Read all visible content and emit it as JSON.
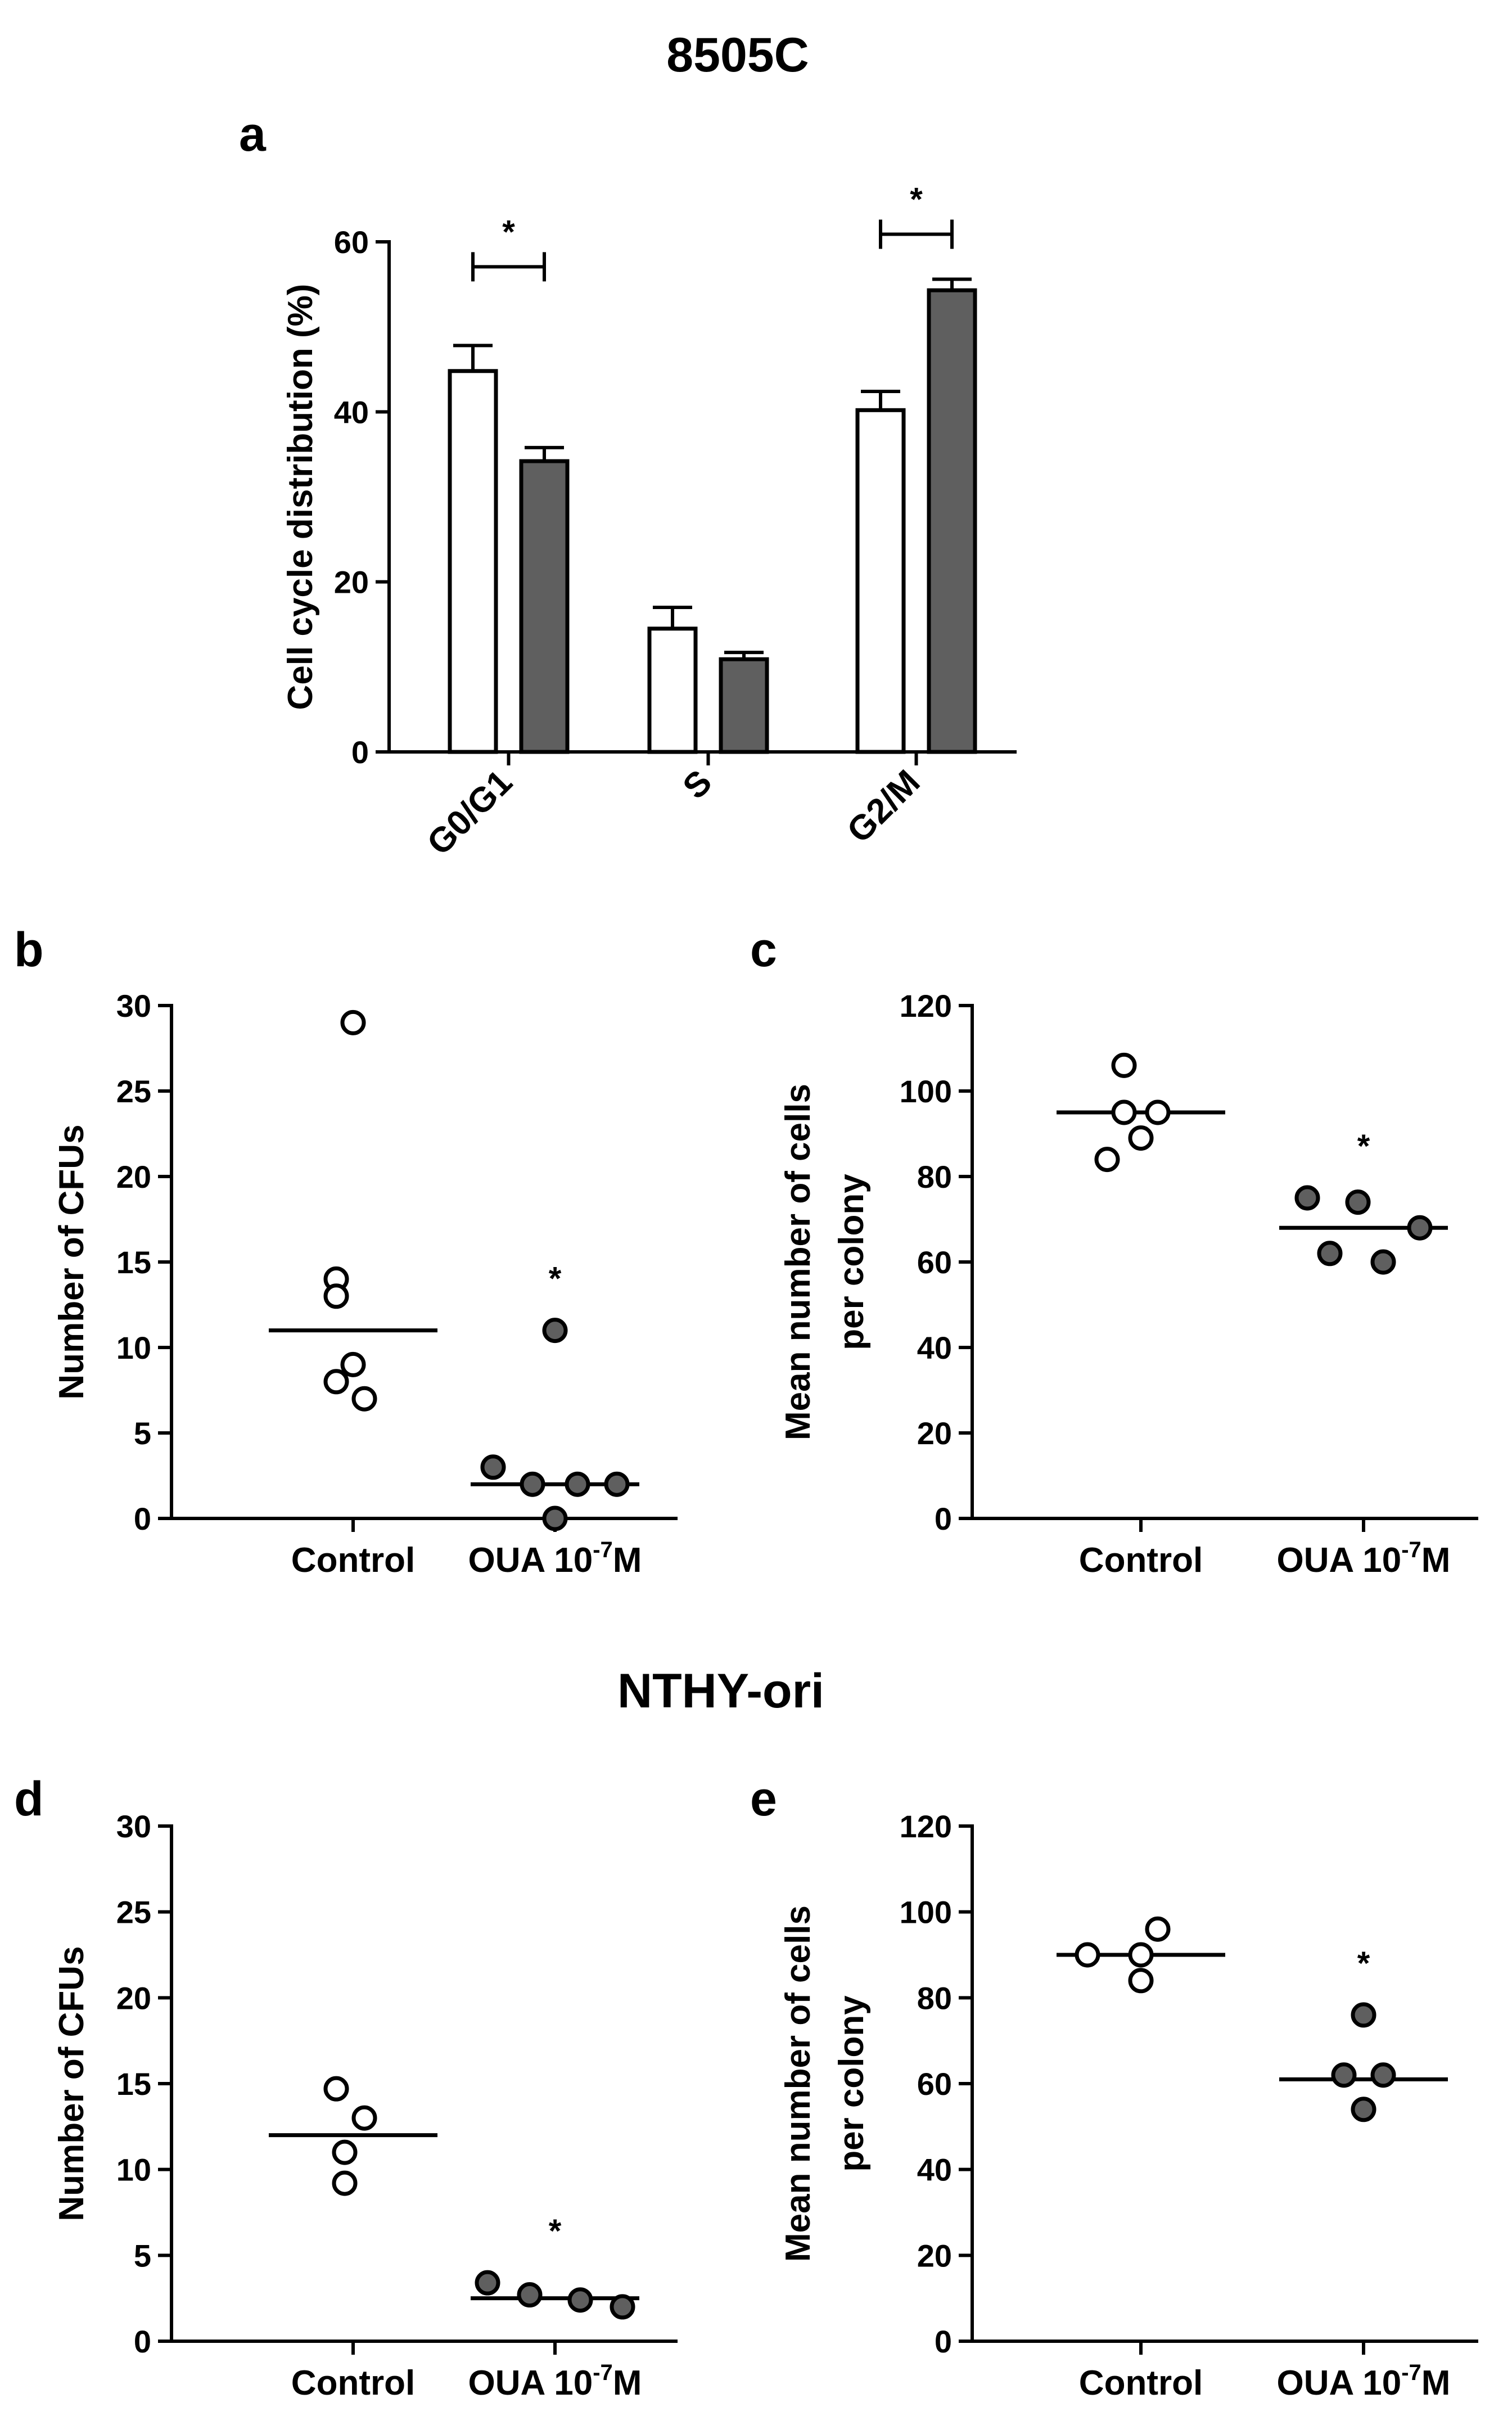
{
  "titles": {
    "top": "8505C",
    "middle": "NTHY-ori"
  },
  "colors": {
    "control": "#ffffff",
    "oua": "#5f5f5f",
    "ink": "#000000"
  },
  "chart_data": [
    {
      "panel": "a",
      "type": "bar",
      "ylabel": "Cell cycle distribution (%)",
      "ylim": [
        0,
        60
      ],
      "yticks": [
        0,
        20,
        40,
        60
      ],
      "categories": [
        "G0/G1",
        "S",
        "G2/M"
      ],
      "series": [
        {
          "name": "Control",
          "values": [
            44.8,
            14.5,
            40.2
          ],
          "errors": [
            3.0,
            2.5,
            2.2
          ]
        },
        {
          "name": "OUA",
          "values": [
            34.2,
            10.9,
            54.3
          ],
          "errors": [
            1.6,
            0.8,
            1.3
          ]
        }
      ],
      "significance": [
        {
          "category": "G0/G1",
          "label": "*"
        },
        {
          "category": "G2/M",
          "label": "*"
        }
      ]
    },
    {
      "panel": "b",
      "type": "scatter",
      "ylabel": "Number of CFUs",
      "ylim": [
        0,
        30
      ],
      "yticks": [
        0,
        5,
        10,
        15,
        20,
        25,
        30
      ],
      "groups": [
        {
          "name": "Control",
          "label": "Control",
          "values": [
            29,
            14,
            13,
            9,
            8,
            7
          ],
          "median": 11
        },
        {
          "name": "OUA",
          "label": "OUA 10",
          "exp": "-7",
          "unit": "M",
          "values": [
            11,
            3,
            2,
            2,
            2,
            0
          ],
          "median": 2,
          "sig": "*"
        }
      ]
    },
    {
      "panel": "c",
      "type": "scatter",
      "ylabel_lines": [
        "Mean number of cells",
        "per colony"
      ],
      "ylim": [
        0,
        120
      ],
      "yticks": [
        0,
        20,
        40,
        60,
        80,
        100,
        120
      ],
      "groups": [
        {
          "name": "Control",
          "label": "Control",
          "values": [
            106,
            95,
            95,
            89,
            84
          ],
          "median": 95
        },
        {
          "name": "OUA",
          "label": "OUA 10",
          "exp": "-7",
          "unit": "M",
          "values": [
            75,
            74,
            68,
            62,
            60
          ],
          "median": 68,
          "sig": "*"
        }
      ]
    },
    {
      "panel": "d",
      "type": "scatter",
      "ylabel": "Number of CFUs",
      "ylim": [
        0,
        30
      ],
      "yticks": [
        0,
        5,
        10,
        15,
        20,
        25,
        30
      ],
      "groups": [
        {
          "name": "Control",
          "label": "Control",
          "values": [
            14.7,
            13,
            11,
            9.2
          ],
          "median": 12
        },
        {
          "name": "OUA",
          "label": "OUA 10",
          "exp": "-7",
          "unit": "M",
          "values": [
            3.4,
            2.7,
            2.4,
            2.0
          ],
          "median": 2.5,
          "sig": "*"
        }
      ]
    },
    {
      "panel": "e",
      "type": "scatter",
      "ylabel_lines": [
        "Mean number of cells",
        "per colony"
      ],
      "ylim": [
        0,
        120
      ],
      "yticks": [
        0,
        20,
        40,
        60,
        80,
        100,
        120
      ],
      "groups": [
        {
          "name": "Control",
          "label": "Control",
          "values": [
            96,
            90,
            90,
            84
          ],
          "median": 90
        },
        {
          "name": "OUA",
          "label": "OUA 10",
          "exp": "-7",
          "unit": "M",
          "values": [
            76,
            62,
            62,
            54
          ],
          "median": 61,
          "sig": "*"
        }
      ]
    }
  ]
}
